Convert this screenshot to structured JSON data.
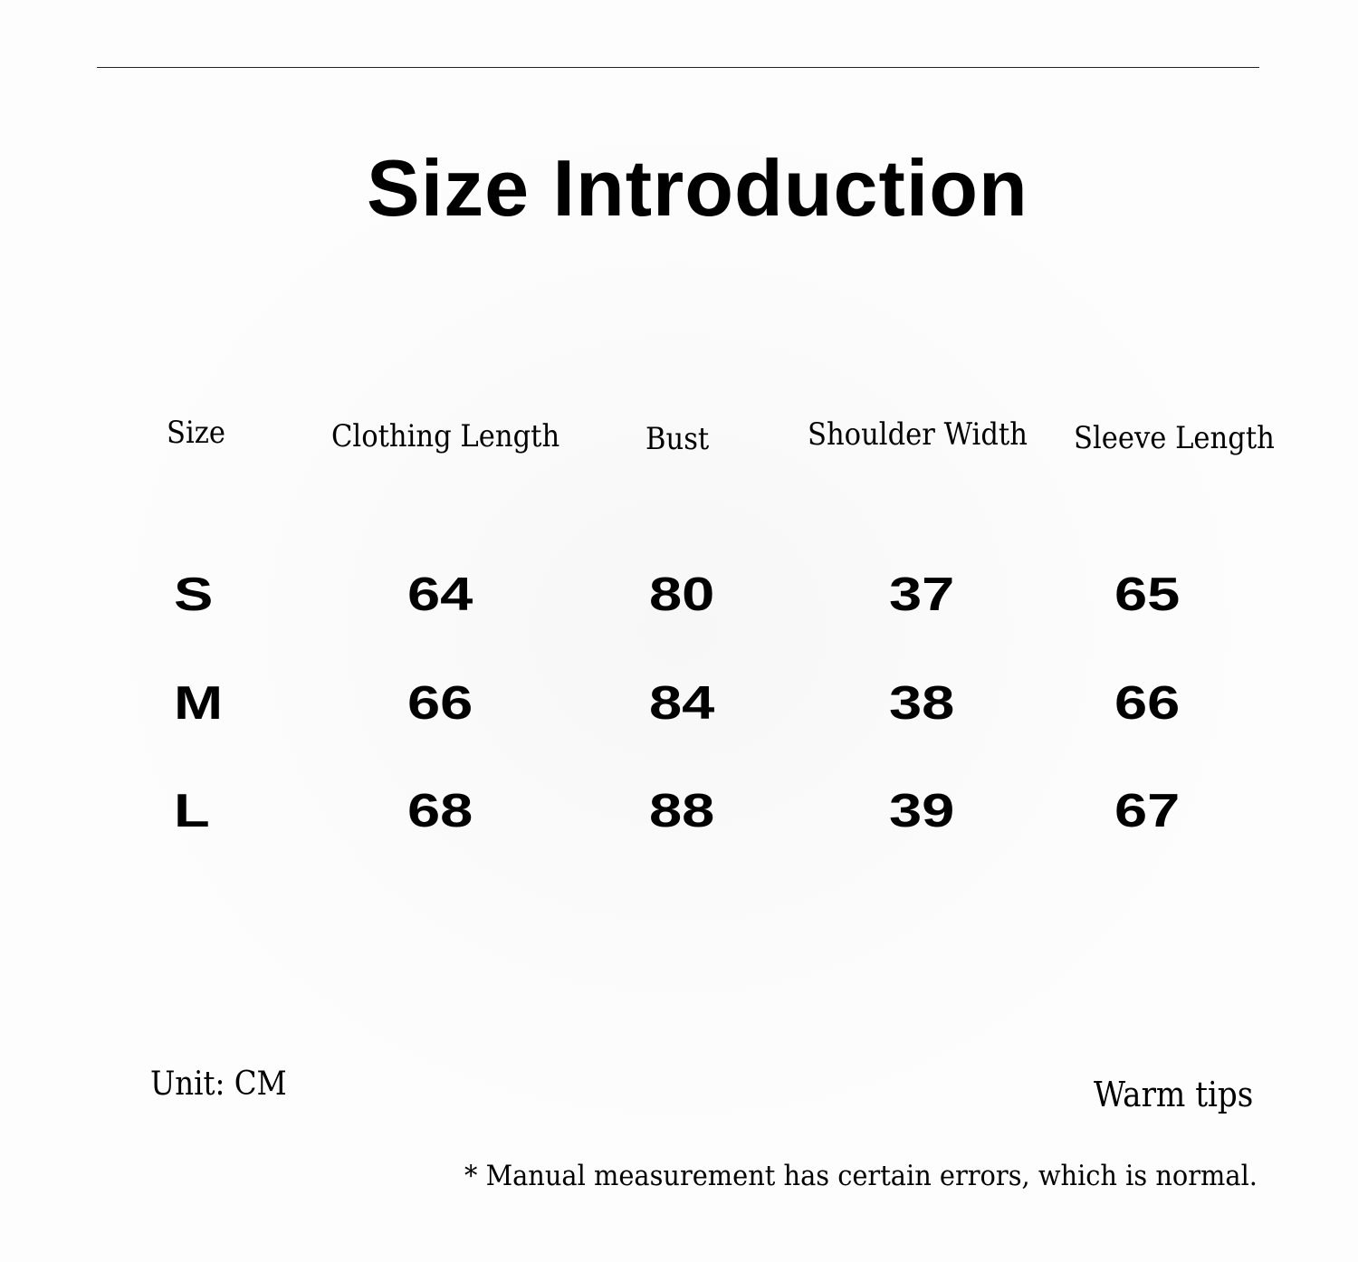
{
  "title": "Size Introduction",
  "table": {
    "headers": [
      "Size",
      "Clothing Length",
      "Bust",
      "Shoulder Width",
      "Sleeve Length"
    ],
    "rows": [
      [
        "S",
        "64",
        "80",
        "37",
        "65"
      ],
      [
        "M",
        "66",
        "84",
        "38",
        "66"
      ],
      [
        "L",
        "68",
        "88",
        "39",
        "67"
      ]
    ]
  },
  "unit": "Unit: CM",
  "warm_tips": "Warm tips",
  "note": "* Manual measurement has certain errors, which is normal."
}
